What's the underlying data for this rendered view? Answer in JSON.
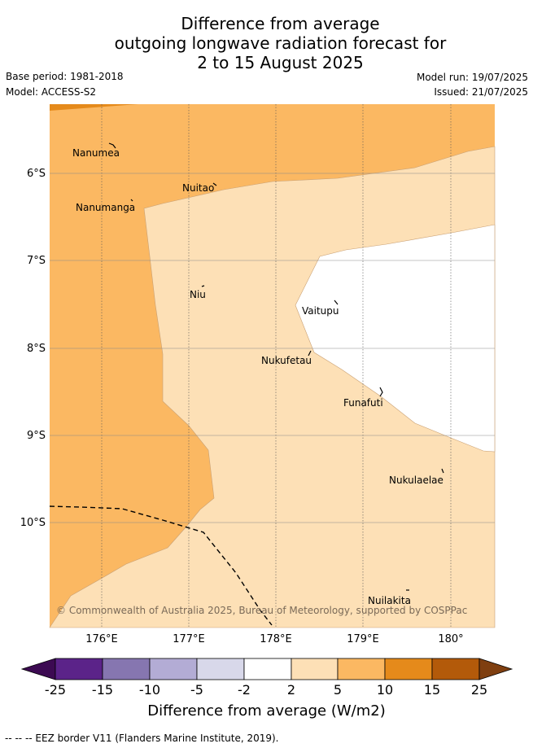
{
  "title": {
    "line1": "Difference from average",
    "line2": "outgoing longwave radiation forecast for",
    "line3": "2 to 15 August 2025"
  },
  "meta": {
    "base_period": "Base period: 1981-2018",
    "model": "Model: ACCESS-S2",
    "model_run": "Model run: 19/07/2025",
    "issued": "Issued: 21/07/2025"
  },
  "map": {
    "lat_labels": [
      "6°S",
      "7°S",
      "8°S",
      "9°S",
      "10°S"
    ],
    "lon_labels": [
      "176°E",
      "177°E",
      "178°E",
      "179°E",
      "180°"
    ],
    "places": [
      "Nanumea",
      "Nuitao",
      "Nanumanga",
      "Niu",
      "Vaitupu",
      "Nukufetau",
      "Funafuti",
      "Nukulaelae",
      "Nuilakita"
    ],
    "copyright": "© Commonwealth of Australia 2025, Bureau of Meteorology, supported by COSPPac",
    "colors": {
      "band_5_10": "#fbb862",
      "band_2_5": "#fde0b6",
      "band_10_15": "#e58a1b",
      "band_neutral": "#ffffff"
    }
  },
  "colorbar": {
    "ticks": [
      "-25",
      "-15",
      "-10",
      "-5",
      "-2",
      "2",
      "5",
      "10",
      "15",
      "25"
    ],
    "colors": [
      "#3c0a52",
      "#5b2389",
      "#8676b0",
      "#b3acd5",
      "#d8d8ea",
      "#ffffff",
      "#fde0b6",
      "#fbb862",
      "#e58a1b",
      "#b35a0a",
      "#7f3f10"
    ],
    "label": "Difference from average (W/m2)"
  },
  "footer": {
    "eez_legend": "-- -- -- EEZ border V11 (Flanders Marine Institute, 2019)."
  }
}
